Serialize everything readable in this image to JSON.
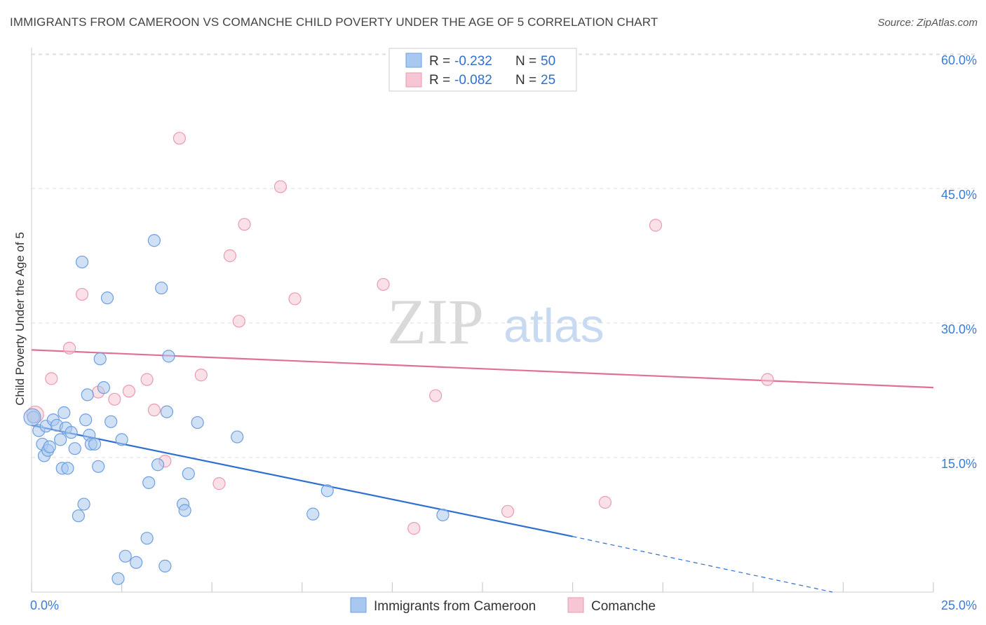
{
  "title": "IMMIGRANTS FROM CAMEROON VS COMANCHE CHILD POVERTY UNDER THE AGE OF 5 CORRELATION CHART",
  "source": "Source: ZipAtlas.com",
  "watermark": {
    "zip": "ZIP",
    "atlas": "atlas"
  },
  "colors": {
    "cameroon_fill": "#a9c8ef",
    "cameroon_stroke": "#6e9fe0",
    "cameroon_line": "#2f6fd0",
    "comanche_fill": "#f6c6d4",
    "comanche_stroke": "#ea9ab3",
    "comanche_line": "#e0709a",
    "tick_text": "#3b7bd4",
    "grid": "#dddddd"
  },
  "legend": {
    "rows": [
      {
        "r_label": "R =",
        "r_value": "-0.232",
        "n_label": "N =",
        "n_value": "50"
      },
      {
        "r_label": "R =",
        "r_value": "-0.082",
        "n_label": "N =",
        "n_value": "25"
      }
    ]
  },
  "chart_data": {
    "type": "scatter",
    "title": "IMMIGRANTS FROM CAMEROON VS COMANCHE CHILD POVERTY UNDER THE AGE OF 5 CORRELATION CHART",
    "xlabel": "",
    "ylabel": "Child Poverty Under the Age of 5",
    "xlim": [
      0,
      25
    ],
    "ylim": [
      0,
      60
    ],
    "x_tick_labels": [
      "0.0%",
      "25.0%"
    ],
    "y_ticks": [
      15,
      30,
      45,
      60
    ],
    "y_tick_labels": [
      "15.0%",
      "30.0%",
      "45.0%",
      "60.0%"
    ],
    "grid": true,
    "legend_position": "top-center",
    "series": [
      {
        "name": "Immigrants from Cameroon",
        "points": [
          [
            0.05,
            19.5
          ],
          [
            0.2,
            18.0
          ],
          [
            0.3,
            16.5
          ],
          [
            0.35,
            15.2
          ],
          [
            0.4,
            18.5
          ],
          [
            0.45,
            15.8
          ],
          [
            0.5,
            16.2
          ],
          [
            0.6,
            19.2
          ],
          [
            0.7,
            18.6
          ],
          [
            0.8,
            17.0
          ],
          [
            0.85,
            13.8
          ],
          [
            0.9,
            20.0
          ],
          [
            0.95,
            18.3
          ],
          [
            1.0,
            13.8
          ],
          [
            1.1,
            17.8
          ],
          [
            1.2,
            16.0
          ],
          [
            1.3,
            8.5
          ],
          [
            1.4,
            36.8
          ],
          [
            1.45,
            9.8
          ],
          [
            1.5,
            19.2
          ],
          [
            1.55,
            22.0
          ],
          [
            1.6,
            17.5
          ],
          [
            1.65,
            16.5
          ],
          [
            1.75,
            16.5
          ],
          [
            1.85,
            14.0
          ],
          [
            1.9,
            26.0
          ],
          [
            2.0,
            22.8
          ],
          [
            2.1,
            32.8
          ],
          [
            2.2,
            19.0
          ],
          [
            2.4,
            1.5
          ],
          [
            2.5,
            17.0
          ],
          [
            2.6,
            4.0
          ],
          [
            2.9,
            3.3
          ],
          [
            3.2,
            6.0
          ],
          [
            3.25,
            12.2
          ],
          [
            3.4,
            39.2
          ],
          [
            3.5,
            14.2
          ],
          [
            3.6,
            33.9
          ],
          [
            3.7,
            2.9
          ],
          [
            3.75,
            20.1
          ],
          [
            3.8,
            26.3
          ],
          [
            4.2,
            9.8
          ],
          [
            4.25,
            9.1
          ],
          [
            4.35,
            13.2
          ],
          [
            4.6,
            18.9
          ],
          [
            5.7,
            17.3
          ],
          [
            7.8,
            8.7
          ],
          [
            8.2,
            11.3
          ],
          [
            11.4,
            8.6
          ],
          [
            0.02,
            19.5
          ]
        ],
        "trend": {
          "x_start": 0,
          "y_start": 18.6,
          "x_end_solid": 15,
          "y_end_solid": 6.2,
          "x_end_dashed": 22.2,
          "y_end_dashed": 0.0
        }
      },
      {
        "name": "Comanche",
        "points": [
          [
            0.1,
            19.8
          ],
          [
            0.55,
            23.8
          ],
          [
            1.05,
            27.2
          ],
          [
            1.4,
            33.2
          ],
          [
            1.85,
            22.3
          ],
          [
            2.3,
            21.5
          ],
          [
            2.7,
            22.4
          ],
          [
            3.2,
            23.7
          ],
          [
            3.4,
            20.3
          ],
          [
            3.7,
            14.6
          ],
          [
            4.1,
            50.6
          ],
          [
            4.7,
            24.2
          ],
          [
            5.2,
            12.1
          ],
          [
            5.5,
            37.5
          ],
          [
            5.75,
            30.2
          ],
          [
            5.9,
            41.0
          ],
          [
            6.9,
            45.2
          ],
          [
            7.3,
            32.7
          ],
          [
            9.75,
            34.3
          ],
          [
            10.6,
            7.1
          ],
          [
            11.2,
            21.9
          ],
          [
            13.2,
            9.0
          ],
          [
            15.9,
            10.0
          ],
          [
            17.3,
            40.9
          ],
          [
            20.4,
            23.7
          ]
        ],
        "trend": {
          "x_start": 0,
          "y_start": 27.0,
          "x_end": 25,
          "y_end": 22.8
        }
      }
    ]
  }
}
